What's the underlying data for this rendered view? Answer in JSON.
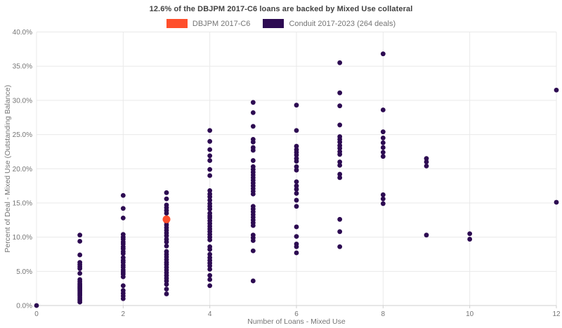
{
  "title": "12.6% of the DBJPM 2017-C6 loans are backed by Mixed Use collateral",
  "legend": {
    "items": [
      {
        "label": "DBJPM 2017-C6",
        "color": "#ff4e2b"
      },
      {
        "label": "Conduit 2017-2023 (264 deals)",
        "color": "#2d0b52"
      }
    ]
  },
  "chart_data": {
    "type": "scatter",
    "title": "12.6% of the DBJPM 2017-C6 loans are backed by Mixed Use collateral",
    "xlabel": "Number of Loans - Mixed Use",
    "ylabel": "Percent of Deal - Mixed Use (Outstanding Balance)",
    "xlim": [
      0,
      12
    ],
    "ylim": [
      0,
      40
    ],
    "grid": true,
    "legend_position": "top",
    "colors": {
      "grid": "#e9e9e9",
      "axis_line": "#cfcfcf",
      "tick_text": "#757575"
    },
    "xticks": [
      {
        "value": 0,
        "label": "0"
      },
      {
        "value": 2,
        "label": "2"
      },
      {
        "value": 4,
        "label": "4"
      },
      {
        "value": 6,
        "label": "6"
      },
      {
        "value": 8,
        "label": "8"
      },
      {
        "value": 10,
        "label": "10"
      },
      {
        "value": 12,
        "label": "12"
      }
    ],
    "yticks": [
      {
        "value": 0,
        "label": "0.0%"
      },
      {
        "value": 5,
        "label": "5.0%"
      },
      {
        "value": 10,
        "label": "10.0%"
      },
      {
        "value": 15,
        "label": "15.0%"
      },
      {
        "value": 20,
        "label": "20.0%"
      },
      {
        "value": 25,
        "label": "25.0%"
      },
      {
        "value": 30,
        "label": "30.0%"
      },
      {
        "value": 35,
        "label": "35.0%"
      },
      {
        "value": 40,
        "label": "40.0%"
      }
    ],
    "series": [
      {
        "name": "Conduit 2017-2023 (264 deals)",
        "color": "#2d0b52",
        "marker_radius": 3.4,
        "points": [
          [
            0,
            0.0
          ],
          [
            1,
            10.3
          ],
          [
            1,
            9.4
          ],
          [
            1,
            7.4
          ],
          [
            1,
            6.3
          ],
          [
            1,
            6.0
          ],
          [
            1,
            5.7
          ],
          [
            1,
            5.4
          ],
          [
            1,
            4.7
          ],
          [
            1,
            3.8
          ],
          [
            1,
            3.5
          ],
          [
            1,
            3.2
          ],
          [
            1,
            3.0
          ],
          [
            1,
            2.8
          ],
          [
            1,
            2.6
          ],
          [
            1,
            2.4
          ],
          [
            1,
            2.2
          ],
          [
            1,
            2.0
          ],
          [
            1,
            1.8
          ],
          [
            1,
            1.6
          ],
          [
            1,
            1.4
          ],
          [
            1,
            1.1
          ],
          [
            1,
            0.8
          ],
          [
            1,
            0.5
          ],
          [
            2,
            16.1
          ],
          [
            2,
            14.2
          ],
          [
            2,
            12.8
          ],
          [
            2,
            10.4
          ],
          [
            2,
            10.0
          ],
          [
            2,
            9.7
          ],
          [
            2,
            9.3
          ],
          [
            2,
            9.0
          ],
          [
            2,
            8.6
          ],
          [
            2,
            8.3
          ],
          [
            2,
            7.9
          ],
          [
            2,
            7.6
          ],
          [
            2,
            7.0
          ],
          [
            2,
            6.6
          ],
          [
            2,
            6.3
          ],
          [
            2,
            5.9
          ],
          [
            2,
            5.6
          ],
          [
            2,
            5.2
          ],
          [
            2,
            4.9
          ],
          [
            2,
            4.6
          ],
          [
            2,
            4.2
          ],
          [
            2,
            2.9
          ],
          [
            2,
            2.2
          ],
          [
            2,
            1.8
          ],
          [
            2,
            1.4
          ],
          [
            2,
            1.0
          ],
          [
            3,
            16.5
          ],
          [
            3,
            15.6
          ],
          [
            3,
            14.7
          ],
          [
            3,
            14.3
          ],
          [
            3,
            13.9
          ],
          [
            3,
            13.5
          ],
          [
            3,
            12.2
          ],
          [
            3,
            11.8
          ],
          [
            3,
            11.4
          ],
          [
            3,
            11.0
          ],
          [
            3,
            10.6
          ],
          [
            3,
            10.2
          ],
          [
            3,
            9.7
          ],
          [
            3,
            9.3
          ],
          [
            3,
            8.7
          ],
          [
            3,
            7.9
          ],
          [
            3,
            7.5
          ],
          [
            3,
            7.1
          ],
          [
            3,
            6.7
          ],
          [
            3,
            6.3
          ],
          [
            3,
            6.0
          ],
          [
            3,
            5.6
          ],
          [
            3,
            5.2
          ],
          [
            3,
            4.8
          ],
          [
            3,
            4.4
          ],
          [
            3,
            4.0
          ],
          [
            3,
            3.6
          ],
          [
            3,
            3.1
          ],
          [
            3,
            2.4
          ],
          [
            3,
            1.7
          ],
          [
            4,
            25.6
          ],
          [
            4,
            24.0
          ],
          [
            4,
            22.8
          ],
          [
            4,
            21.9
          ],
          [
            4,
            21.2
          ],
          [
            4,
            19.9
          ],
          [
            4,
            19.0
          ],
          [
            4,
            16.8
          ],
          [
            4,
            16.3
          ],
          [
            4,
            15.9
          ],
          [
            4,
            15.4
          ],
          [
            4,
            14.9
          ],
          [
            4,
            14.5
          ],
          [
            4,
            14.1
          ],
          [
            4,
            13.5
          ],
          [
            4,
            13.1
          ],
          [
            4,
            12.8
          ],
          [
            4,
            12.4
          ],
          [
            4,
            12.0
          ],
          [
            4,
            11.6
          ],
          [
            4,
            11.2
          ],
          [
            4,
            10.8
          ],
          [
            4,
            10.4
          ],
          [
            4,
            10.0
          ],
          [
            4,
            9.6
          ],
          [
            4,
            8.6
          ],
          [
            4,
            8.2
          ],
          [
            4,
            7.5
          ],
          [
            4,
            7.0
          ],
          [
            4,
            6.6
          ],
          [
            4,
            6.2
          ],
          [
            4,
            5.8
          ],
          [
            4,
            5.3
          ],
          [
            4,
            4.4
          ],
          [
            4,
            3.8
          ],
          [
            4,
            2.9
          ],
          [
            5,
            29.7
          ],
          [
            5,
            28.2
          ],
          [
            5,
            26.2
          ],
          [
            5,
            24.3
          ],
          [
            5,
            23.9
          ],
          [
            5,
            23.1
          ],
          [
            5,
            22.7
          ],
          [
            5,
            21.2
          ],
          [
            5,
            20.3
          ],
          [
            5,
            19.9
          ],
          [
            5,
            19.5
          ],
          [
            5,
            19.1
          ],
          [
            5,
            18.7
          ],
          [
            5,
            18.3
          ],
          [
            5,
            17.9
          ],
          [
            5,
            17.5
          ],
          [
            5,
            17.1
          ],
          [
            5,
            16.7
          ],
          [
            5,
            16.3
          ],
          [
            5,
            14.5
          ],
          [
            5,
            14.1
          ],
          [
            5,
            13.7
          ],
          [
            5,
            13.3
          ],
          [
            5,
            12.9
          ],
          [
            5,
            12.5
          ],
          [
            5,
            12.1
          ],
          [
            5,
            11.7
          ],
          [
            5,
            10.3
          ],
          [
            5,
            9.9
          ],
          [
            5,
            9.5
          ],
          [
            5,
            8.0
          ],
          [
            5,
            3.6
          ],
          [
            6,
            29.3
          ],
          [
            6,
            25.6
          ],
          [
            6,
            23.3
          ],
          [
            6,
            22.8
          ],
          [
            6,
            22.4
          ],
          [
            6,
            22.0
          ],
          [
            6,
            21.5
          ],
          [
            6,
            21.1
          ],
          [
            6,
            20.3
          ],
          [
            6,
            19.8
          ],
          [
            6,
            18.1
          ],
          [
            6,
            17.5
          ],
          [
            6,
            17.0
          ],
          [
            6,
            16.4
          ],
          [
            6,
            15.4
          ],
          [
            6,
            14.5
          ],
          [
            6,
            11.5
          ],
          [
            6,
            10.1
          ],
          [
            6,
            9.0
          ],
          [
            6,
            8.6
          ],
          [
            6,
            7.7
          ],
          [
            7,
            35.5
          ],
          [
            7,
            31.1
          ],
          [
            7,
            29.2
          ],
          [
            7,
            26.4
          ],
          [
            7,
            24.7
          ],
          [
            7,
            24.3
          ],
          [
            7,
            23.9
          ],
          [
            7,
            23.4
          ],
          [
            7,
            23.0
          ],
          [
            7,
            22.5
          ],
          [
            7,
            22.1
          ],
          [
            7,
            21.0
          ],
          [
            7,
            20.5
          ],
          [
            7,
            19.2
          ],
          [
            7,
            18.7
          ],
          [
            7,
            12.6
          ],
          [
            7,
            10.8
          ],
          [
            7,
            8.6
          ],
          [
            8,
            36.8
          ],
          [
            8,
            28.6
          ],
          [
            8,
            25.4
          ],
          [
            8,
            24.5
          ],
          [
            8,
            23.8
          ],
          [
            8,
            23.1
          ],
          [
            8,
            22.4
          ],
          [
            8,
            21.8
          ],
          [
            8,
            16.2
          ],
          [
            8,
            15.6
          ],
          [
            8,
            14.9
          ],
          [
            9,
            21.5
          ],
          [
            9,
            21.0
          ],
          [
            9,
            20.4
          ],
          [
            9,
            10.3
          ],
          [
            10,
            10.5
          ],
          [
            10,
            9.7
          ],
          [
            12,
            31.5
          ],
          [
            12,
            15.1
          ]
        ]
      },
      {
        "name": "DBJPM 2017-C6",
        "color": "#ff4e2b",
        "marker_radius": 5.5,
        "points": [
          [
            3,
            12.6
          ]
        ]
      }
    ]
  }
}
